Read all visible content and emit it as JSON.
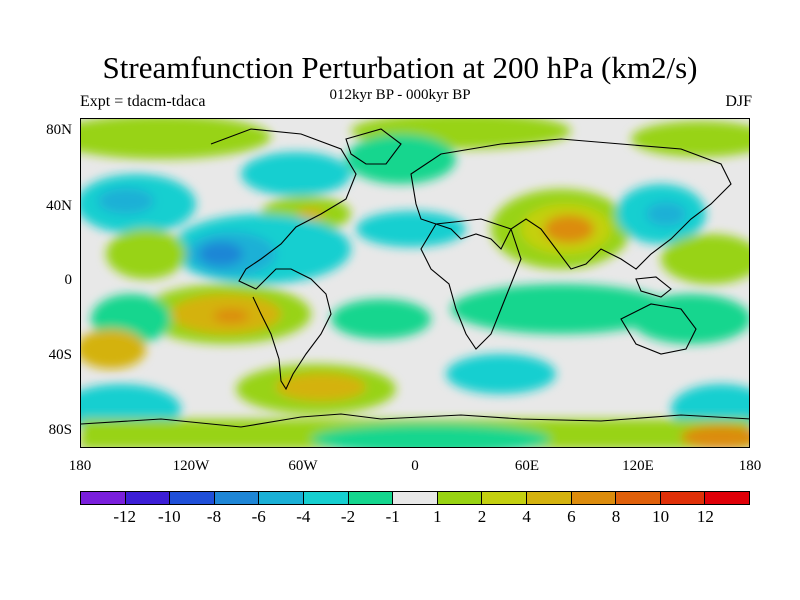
{
  "title": "Streamfunction Perturbation at 200 hPa (km2/s)",
  "subtitle": "012kyr BP - 000kyr BP",
  "left_label": "Expt = tdacm-tdaca",
  "right_label": "DJF",
  "lat_ticks": [
    "80N",
    "40N",
    "0",
    "40S",
    "80S"
  ],
  "lon_ticks": [
    "180",
    "120W",
    "60W",
    "0",
    "60E",
    "120E",
    "180"
  ],
  "colorbar": {
    "colors": [
      "#7a1fdc",
      "#3c1ed6",
      "#1f4fd8",
      "#1e86d6",
      "#1ab0d6",
      "#16cfd0",
      "#14d68e",
      "#e8e8e8",
      "#98d312",
      "#c4d010",
      "#d4b20e",
      "#dc8c0c",
      "#e0600a",
      "#e03008",
      "#e00008"
    ],
    "labels": [
      "-12",
      "-10",
      "-8",
      "-6",
      "-4",
      "-2",
      "-1",
      "1",
      "2",
      "4",
      "6",
      "8",
      "10",
      "12"
    ]
  },
  "colors": {
    "neutral": "#e8e8e8",
    "green_pos": "#98d312",
    "yellow_pos": "#c4d010",
    "orange_pos": "#d4b20e",
    "orange_dark": "#dc8c0c",
    "teal_neg": "#14d68e",
    "cyan_neg": "#16cfd0",
    "light_blue_neg": "#1ab0d6",
    "blue_neg": "#1e86d6"
  }
}
